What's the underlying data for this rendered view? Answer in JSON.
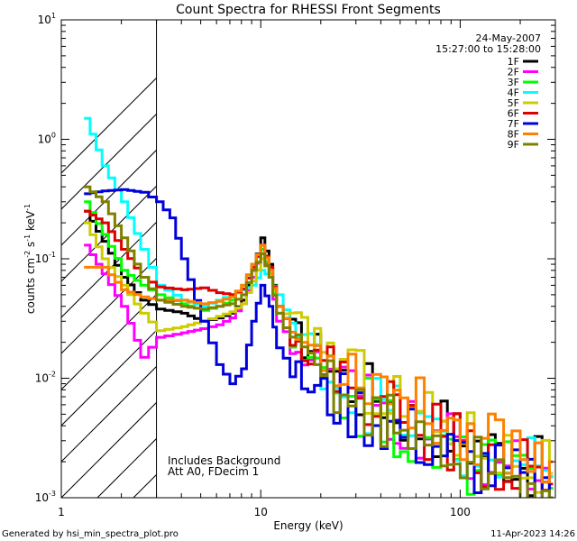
{
  "chart_data": {
    "type": "line",
    "title": "Count Spectra for RHESSI Front Segments",
    "xlabel": "Energy (keV)",
    "ylabel": "counts cm",
    "ylabel_exp1": "-2",
    "ylabel_mid": " s",
    "ylabel_exp2": "-1",
    "ylabel_end": " keV",
    "ylabel_exp3": "-1",
    "xscale": "log",
    "yscale": "log",
    "xlim": [
      1,
      300
    ],
    "ylim": [
      0.001,
      10
    ],
    "x_ticks": [
      {
        "value": 1,
        "label": "1"
      },
      {
        "value": 10,
        "label": "10"
      },
      {
        "value": 100,
        "label": "100"
      }
    ],
    "y_ticks": [
      {
        "value": 10,
        "base": "10",
        "exp": "1"
      },
      {
        "value": 1,
        "base": "10",
        "exp": "0"
      },
      {
        "value": 0.1,
        "base": "10",
        "exp": "-1"
      },
      {
        "value": 0.01,
        "base": "10",
        "exp": "-2"
      },
      {
        "value": 0.001,
        "base": "10",
        "exp": "-3"
      }
    ],
    "hatched_region": {
      "xmin": 1,
      "xmax": 3
    },
    "date": "24-May-2007",
    "time_range": "15:27:00 to 15:28:00",
    "annotations": [
      "Includes Background",
      "Att A0, FDecim 1"
    ],
    "legend_position": "top-right",
    "series": [
      {
        "name": "1F",
        "color": "#000000",
        "x": [
          1.3,
          1.6,
          2.0,
          2.5,
          3,
          4,
          5,
          6,
          7,
          8,
          9,
          10,
          11,
          12,
          14,
          16,
          20,
          25,
          30,
          40,
          50,
          60,
          80,
          100,
          150,
          200,
          280
        ],
        "y": [
          0.25,
          0.14,
          0.07,
          0.045,
          0.038,
          0.035,
          0.03,
          0.032,
          0.035,
          0.045,
          0.08,
          0.15,
          0.09,
          0.04,
          0.025,
          0.02,
          0.015,
          0.01,
          0.008,
          0.007,
          0.005,
          0.004,
          0.004,
          0.003,
          0.0025,
          0.002,
          0.0015
        ]
      },
      {
        "name": "2F",
        "color": "#ff00ff",
        "x": [
          1.3,
          1.6,
          2.0,
          2.5,
          3,
          4,
          5,
          6,
          7,
          8,
          9,
          10,
          11,
          12,
          14,
          16,
          20,
          25,
          30,
          40,
          50,
          60,
          80,
          100,
          150,
          200,
          280
        ],
        "y": [
          0.13,
          0.075,
          0.04,
          0.015,
          0.022,
          0.024,
          0.026,
          0.028,
          0.032,
          0.042,
          0.07,
          0.12,
          0.07,
          0.03,
          0.02,
          0.015,
          0.011,
          0.008,
          0.0065,
          0.005,
          0.004,
          0.0035,
          0.003,
          0.0025,
          0.002,
          0.0015,
          0.0012
        ]
      },
      {
        "name": "3F",
        "color": "#00ff00",
        "x": [
          1.3,
          1.6,
          2.0,
          2.5,
          3,
          4,
          5,
          6,
          7,
          8,
          9,
          10,
          11,
          12,
          14,
          16,
          20,
          25,
          30,
          40,
          50,
          60,
          80,
          100,
          150,
          200,
          280
        ],
        "y": [
          0.3,
          0.16,
          0.08,
          0.06,
          0.05,
          0.042,
          0.037,
          0.04,
          0.045,
          0.06,
          0.09,
          0.12,
          0.075,
          0.035,
          0.02,
          0.014,
          0.01,
          0.008,
          0.006,
          0.0045,
          0.0035,
          0.003,
          0.0025,
          0.002,
          0.0018,
          0.0015,
          0.0012
        ]
      },
      {
        "name": "4F",
        "color": "#00ffff",
        "x": [
          1.3,
          1.6,
          2.0,
          2.5,
          3,
          4,
          5,
          6,
          7,
          8,
          9,
          10,
          11,
          12,
          14,
          16,
          20,
          25,
          30,
          40,
          50,
          60,
          80,
          100,
          150,
          200,
          280
        ],
        "y": [
          1.5,
          0.6,
          0.3,
          0.12,
          0.06,
          0.045,
          0.04,
          0.045,
          0.05,
          0.055,
          0.06,
          0.08,
          0.07,
          0.05,
          0.028,
          0.02,
          0.013,
          0.009,
          0.007,
          0.0055,
          0.0045,
          0.0038,
          0.003,
          0.0025,
          0.002,
          0.0018,
          0.0015
        ]
      },
      {
        "name": "5F",
        "color": "#cccc00",
        "x": [
          1.3,
          1.6,
          2.0,
          2.5,
          3,
          4,
          5,
          6,
          7,
          8,
          9,
          10,
          11,
          12,
          14,
          16,
          20,
          25,
          30,
          40,
          50,
          60,
          80,
          100,
          150,
          200,
          280
        ],
        "y": [
          0.2,
          0.1,
          0.06,
          0.035,
          0.025,
          0.027,
          0.03,
          0.033,
          0.036,
          0.042,
          0.065,
          0.1,
          0.075,
          0.04,
          0.03,
          0.024,
          0.02,
          0.014,
          0.01,
          0.008,
          0.006,
          0.005,
          0.004,
          0.0035,
          0.0025,
          0.002,
          0.0016
        ]
      },
      {
        "name": "6F",
        "color": "#dd0000",
        "x": [
          1.3,
          1.6,
          2.0,
          2.5,
          3,
          4,
          5,
          6,
          7,
          8,
          9,
          10,
          11,
          12,
          14,
          16,
          20,
          25,
          30,
          40,
          50,
          60,
          80,
          100,
          150,
          200,
          280
        ],
        "y": [
          0.25,
          0.2,
          0.12,
          0.07,
          0.058,
          0.055,
          0.057,
          0.052,
          0.05,
          0.056,
          0.085,
          0.13,
          0.085,
          0.04,
          0.025,
          0.018,
          0.013,
          0.01,
          0.008,
          0.006,
          0.005,
          0.004,
          0.0033,
          0.0027,
          0.0021,
          0.0017,
          0.0013
        ]
      },
      {
        "name": "7F",
        "color": "#0000dd",
        "x": [
          1.3,
          1.6,
          2.0,
          2.5,
          3,
          3.5,
          4,
          5,
          6,
          7,
          8,
          9,
          10,
          11,
          12,
          14,
          16,
          20,
          25,
          30,
          40,
          50,
          60,
          80,
          100,
          150,
          200,
          280
        ],
        "y": [
          0.35,
          0.37,
          0.38,
          0.36,
          0.3,
          0.22,
          0.1,
          0.03,
          0.013,
          0.009,
          0.012,
          0.03,
          0.06,
          0.04,
          0.018,
          0.012,
          0.009,
          0.007,
          0.006,
          0.005,
          0.0042,
          0.0035,
          0.003,
          0.0025,
          0.002,
          0.0016,
          0.0013,
          0.001
        ]
      },
      {
        "name": "8F",
        "color": "#ff8000",
        "x": [
          1.3,
          1.6,
          2.0,
          2.5,
          3,
          4,
          5,
          6,
          7,
          8,
          9,
          10,
          11,
          12,
          14,
          16,
          20,
          25,
          30,
          40,
          50,
          60,
          80,
          100,
          150,
          200,
          280
        ],
        "y": [
          0.085,
          0.085,
          0.055,
          0.048,
          0.045,
          0.045,
          0.042,
          0.044,
          0.048,
          0.06,
          0.09,
          0.13,
          0.08,
          0.04,
          0.025,
          0.019,
          0.016,
          0.013,
          0.011,
          0.009,
          0.007,
          0.0055,
          0.0045,
          0.0038,
          0.003,
          0.0024,
          0.002
        ]
      },
      {
        "name": "9F",
        "color": "#808000",
        "x": [
          1.3,
          1.6,
          2.0,
          2.5,
          3,
          4,
          5,
          6,
          7,
          8,
          9,
          10,
          11,
          12,
          14,
          16,
          20,
          25,
          30,
          40,
          50,
          60,
          80,
          100,
          150,
          200,
          280
        ],
        "y": [
          0.4,
          0.3,
          0.15,
          0.07,
          0.045,
          0.04,
          0.038,
          0.04,
          0.042,
          0.05,
          0.08,
          0.11,
          0.07,
          0.035,
          0.02,
          0.015,
          0.011,
          0.008,
          0.006,
          0.0045,
          0.0035,
          0.003,
          0.0025,
          0.002,
          0.0016,
          0.0013,
          0.001
        ]
      }
    ]
  },
  "footer": {
    "left": "Generated by hsi_min_spectra_plot.pro",
    "right": "11-Apr-2023 14:26"
  }
}
